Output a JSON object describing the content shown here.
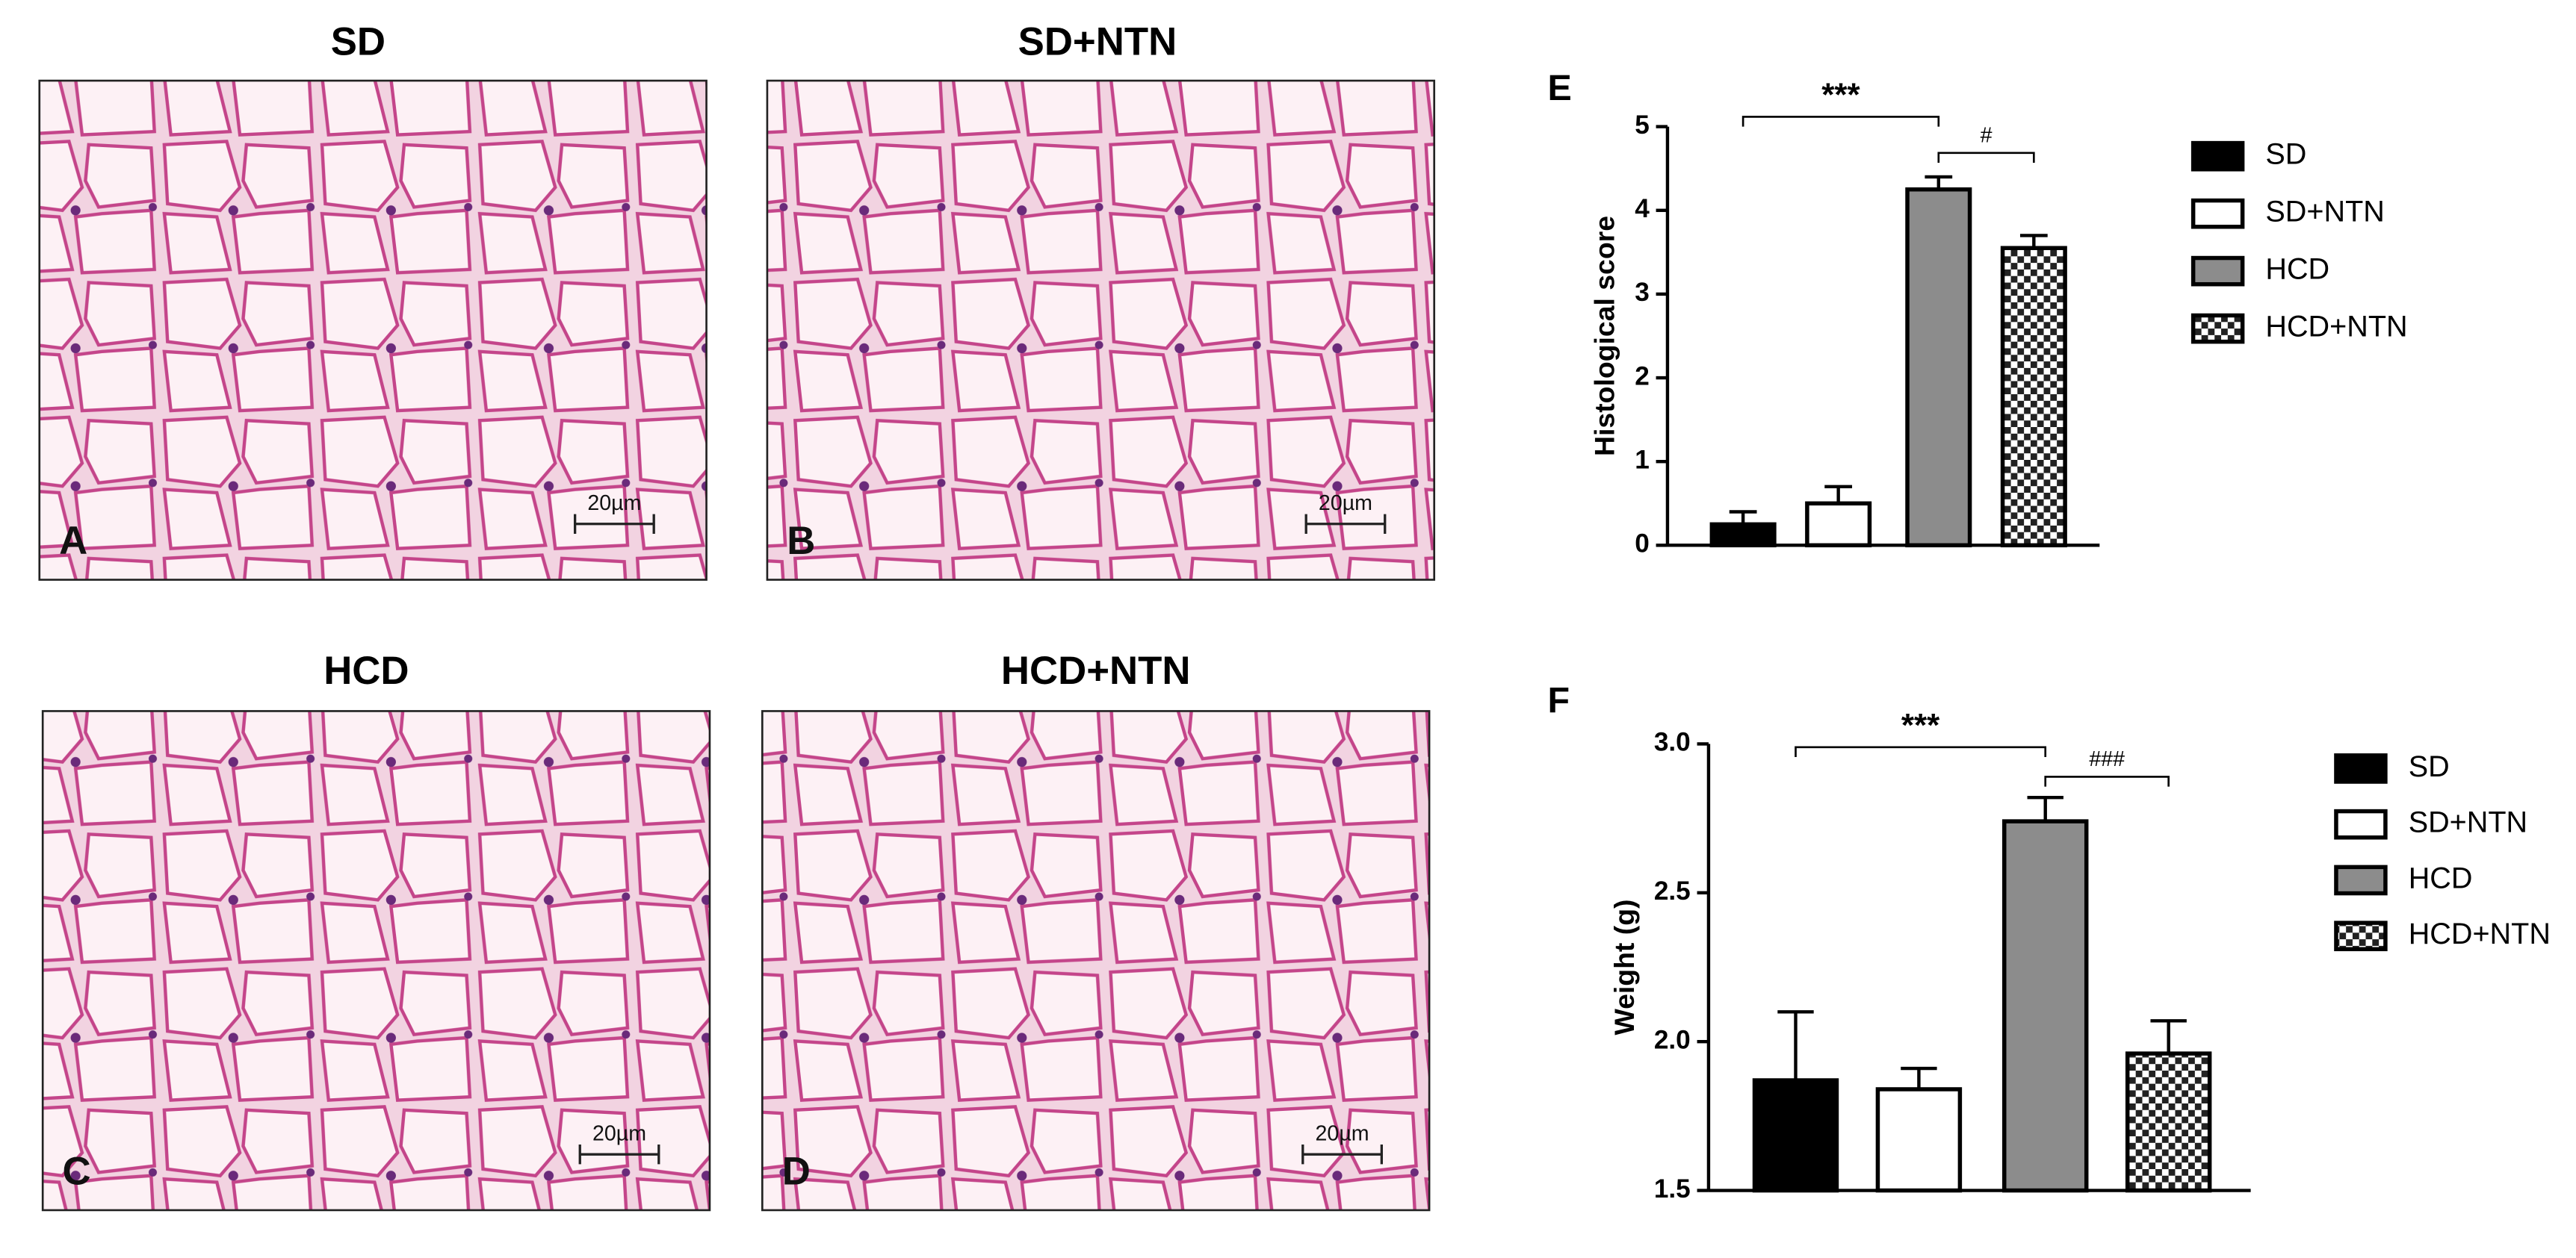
{
  "panels": [
    {
      "title": "SD",
      "letter": "A",
      "scale": "20µm"
    },
    {
      "title": "SD+NTN",
      "letter": "B",
      "scale": "20µm"
    },
    {
      "title": "HCD",
      "letter": "C",
      "scale": "20µm"
    },
    {
      "title": "HCD+NTN",
      "letter": "D",
      "scale": "20µm"
    }
  ],
  "chart_data": [
    {
      "type": "bar",
      "panel_label": "E",
      "ylabel": "Histological score",
      "categories": [
        "SD",
        "SD+NTN",
        "HCD",
        "HCD+NTN"
      ],
      "values": [
        0.25,
        0.5,
        4.25,
        3.55
      ],
      "errors": [
        0.15,
        0.2,
        0.15,
        0.15
      ],
      "colors": [
        "#000000",
        "#ffffff",
        "#8c8c8c",
        "checker"
      ],
      "ylim": [
        0,
        5
      ],
      "yticks": [
        0,
        1,
        2,
        3,
        4,
        5
      ],
      "annotations": [
        "***",
        "#"
      ],
      "legend": "right"
    },
    {
      "type": "bar",
      "panel_label": "F",
      "ylabel": "Weight (g)",
      "categories": [
        "SD",
        "SD+NTN",
        "HCD",
        "HCD+NTN"
      ],
      "values": [
        1.87,
        1.84,
        2.74,
        1.96
      ],
      "errors": [
        0.23,
        0.07,
        0.08,
        0.11
      ],
      "colors": [
        "#000000",
        "#ffffff",
        "#8c8c8c",
        "checker"
      ],
      "ylim": [
        1.5,
        3.0
      ],
      "yticks": [
        1.5,
        {
          "value": 2.0,
          "label": "2.0"
        },
        2.5,
        {
          "value": 3.0,
          "label": "3.0"
        }
      ],
      "annotations": [
        "***",
        "###"
      ],
      "legend": "right"
    }
  ]
}
